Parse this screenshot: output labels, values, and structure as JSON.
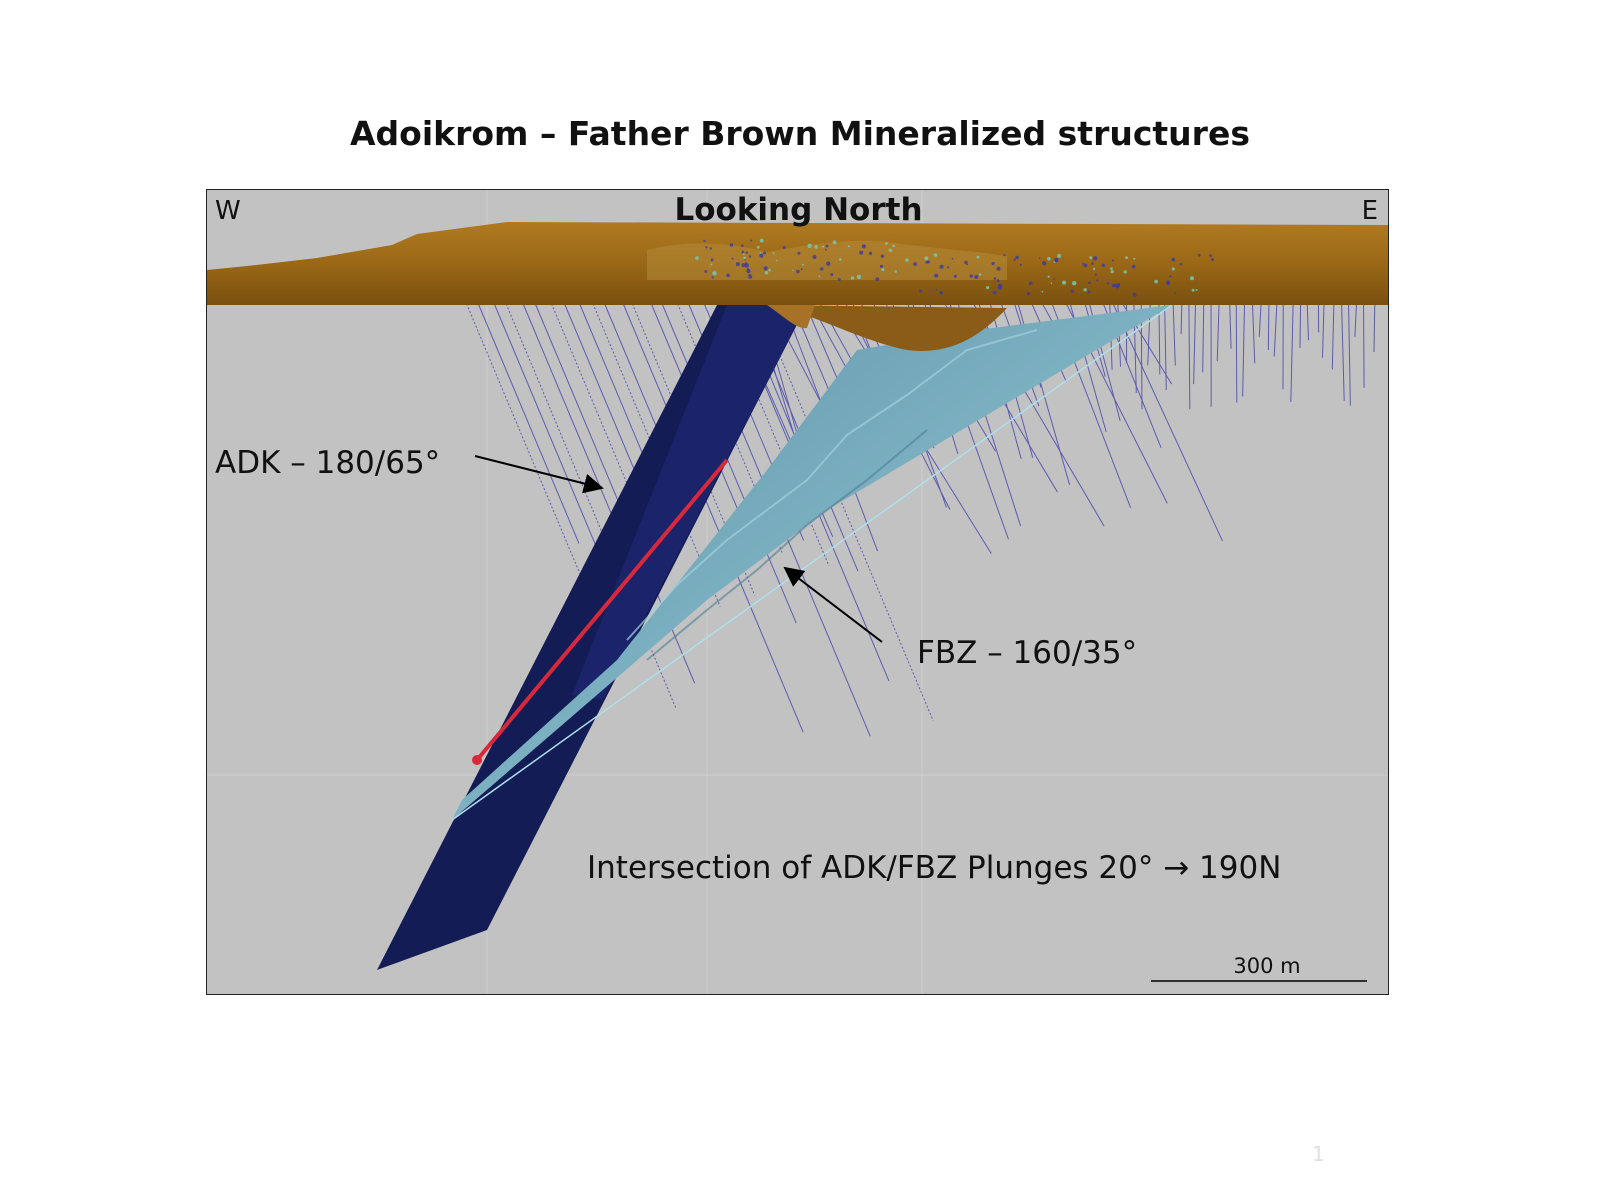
{
  "title": "Adoikrom – Father Brown Mineralized structures",
  "view": "Looking North",
  "west": "W",
  "east": "E",
  "labels": {
    "adk": "ADK – 180/65°",
    "fbz": "FBZ – 160/35°",
    "intersection": "Intersection of ADK/FBZ Plunges 20°  → 190N"
  },
  "scale_bar": "300 m",
  "page_number": "1",
  "colors": {
    "background": "#c2c2c2",
    "topography": "#9a6816",
    "adk_plane": "#141c55",
    "fbz_plane": "#6fa3b5",
    "drill_holes": "#3a3aa8",
    "intersection_line": "#d9283a"
  }
}
